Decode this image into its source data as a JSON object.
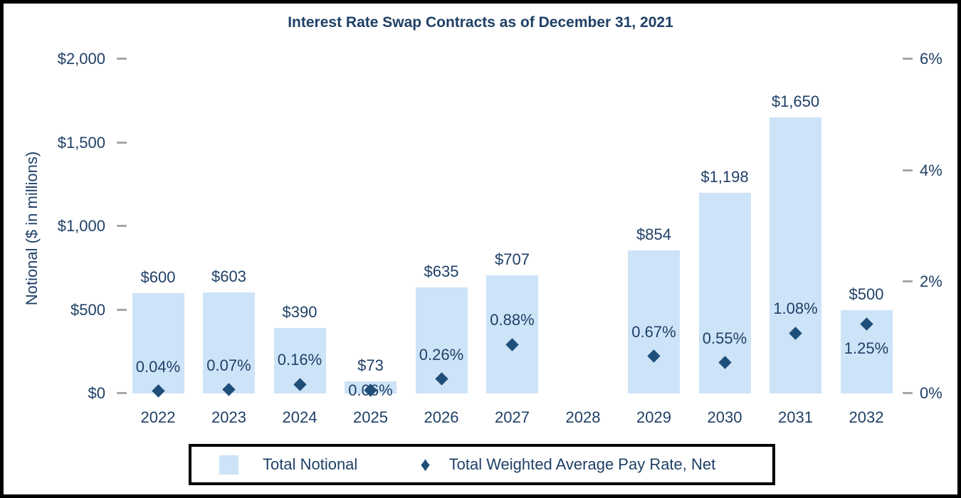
{
  "title": "Interest Rate Swap Contracts as of December 31, 2021",
  "colors": {
    "text": "#1F4066",
    "marker": "#1F4E79",
    "bar_fill": "#CDE3F8",
    "tick": "#A6A6A6",
    "border": "#000000",
    "background": "#FFFFFF"
  },
  "legend_diamond_glyph": "♦",
  "chart_data": {
    "type": "bar",
    "subtype": "combo-bar-scatter",
    "title": "Interest Rate Swap Contracts as of December 31, 2021",
    "categories": [
      "2022",
      "2023",
      "2024",
      "2025",
      "2026",
      "2027",
      "2028",
      "2029",
      "2030",
      "2031",
      "2032"
    ],
    "series": [
      {
        "name": "Total Notional",
        "type": "bar",
        "axis": "left",
        "values": [
          600,
          603,
          390,
          73,
          635,
          707,
          null,
          854,
          1198,
          1650,
          500
        ],
        "labels": [
          "$600",
          "$603",
          "$390",
          "$73",
          "$635",
          "$707",
          null,
          "$854",
          "$1,198",
          "$1,650",
          "$500"
        ]
      },
      {
        "name": "Total Weighted Average Pay Rate, Net",
        "type": "scatter",
        "marker": "diamond",
        "axis": "right",
        "values": [
          0.04,
          0.07,
          0.16,
          0.06,
          0.26,
          0.88,
          null,
          0.67,
          0.55,
          1.08,
          1.25
        ],
        "labels": [
          "0.04%",
          "0.07%",
          "0.16%",
          "0.06%",
          "0.26%",
          "0.88%",
          null,
          "0.67%",
          "0.55%",
          "1.08%",
          "1.25%"
        ],
        "label_positions": [
          "above",
          "above",
          "above",
          "over",
          "above",
          "above",
          null,
          "above",
          "above",
          "above",
          "below"
        ]
      }
    ],
    "left_axis": {
      "title": "Notional ($ in millions)",
      "min": 0,
      "max": 2000,
      "ticks": [
        {
          "value": 2000,
          "label": "$2,000"
        },
        {
          "value": 1500,
          "label": "$1,500"
        },
        {
          "value": 1000,
          "label": "$1,000"
        },
        {
          "value": 500,
          "label": "$500"
        },
        {
          "value": 0,
          "label": "$0"
        }
      ]
    },
    "right_axis": {
      "title": "",
      "min": 0,
      "max": 6,
      "ticks": [
        {
          "value": 6,
          "label": "6%"
        },
        {
          "value": 4,
          "label": "4%"
        },
        {
          "value": 2,
          "label": "2%"
        },
        {
          "value": 0,
          "label": "0%"
        }
      ]
    },
    "gridlines": false,
    "legend": {
      "position": "bottom",
      "border": true,
      "items": [
        {
          "label": "Total Notional",
          "marker": "square"
        },
        {
          "label": "Total Weighted Average Pay Rate, Net",
          "marker": "diamond"
        }
      ]
    }
  }
}
